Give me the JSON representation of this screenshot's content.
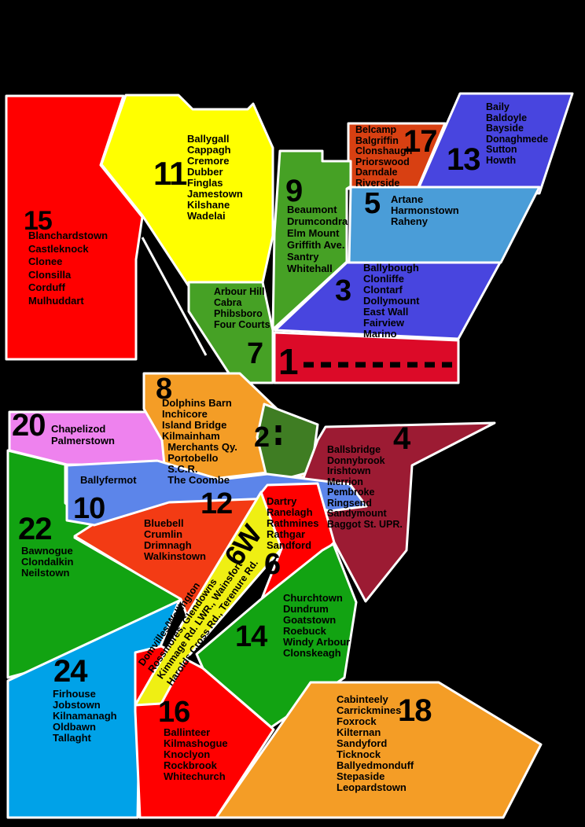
{
  "map": {
    "background_color": "#000000",
    "boundary_color": "#FFFFFF"
  },
  "districts": {
    "d1": {
      "number": "1",
      "color": "#DC0A28"
    },
    "d2": {
      "number": "2",
      "color": "#3F7D23"
    },
    "d3": {
      "number": "3",
      "areas": "Ballybough\nClonliffe\nClontarf\nDollymount\nEast Wall\nFairview\nMarino",
      "color": "#4845DF"
    },
    "d4": {
      "number": "4",
      "areas": "Ballsbridge\nDonnybrook\nIrishtown\nMerrion\nPembroke\nRingsend\nSandymount\nBaggot St. UPR.",
      "color": "#9C1B33"
    },
    "d5": {
      "number": "5",
      "areas": "Artane\nHarmonstown\nRaheny",
      "color": "#4A9DD8"
    },
    "d6": {
      "number": "6",
      "areas": "Dartry\nRanelagh\nRathmines\nRathgar\nSandford",
      "color": "#FF0000"
    },
    "d6w": {
      "number": "6W",
      "areas": "Domvilles/Wellington\nRossmores, Glendowns\nKimmage Rd. LWR., Wainsfort\nHarolds Cross Rd., Terenure Rd.",
      "color": "#EFEF13"
    },
    "d7": {
      "number": "7",
      "areas": "Arbour Hill\nCabra\nPhibsboro\nFour Courts",
      "color": "#46A125"
    },
    "d8": {
      "number": "8",
      "areas": "Dolphins Barn\nInchicore\nIsland Bridge\nKilmainham\n  Merchants Qy.\n  Portobello\n  S.C.R.\n  The Coombe",
      "color": "#F49D26"
    },
    "d9": {
      "number": "9",
      "areas": "Beaumont\nDrumcondra\nElm Mount\nGriffith Ave.\nSantry\nWhitehall",
      "color": "#46A125"
    },
    "d10": {
      "number": "10",
      "areas": "Ballyfermot",
      "color": "#5C85EA"
    },
    "d11": {
      "number": "11",
      "areas": "Ballygall\nCappagh\nCremore\nDubber\nFinglas\nJamestown\nKilshane\nWadelai",
      "color": "#FFFF00"
    },
    "d12": {
      "number": "12",
      "areas": "Bluebell\nCrumlin\nDrimnagh\nWalkinstown",
      "color": "#F33B14"
    },
    "d13": {
      "number": "13",
      "areas": "Baily\nBaldoyle\nBayside\nDonaghmede\nSutton\nHowth",
      "color": "#4845DF"
    },
    "d14": {
      "number": "14",
      "areas": "Churchtown\nDundrum\nGoatstown\nRoebuck\nWindy Arbour\nClonskeagh",
      "color": "#12A312"
    },
    "d15": {
      "number": "15",
      "areas": "Blanchardstown\nCastleknock\nClonee\nClonsilla\nCorduff\nMulhuddart",
      "color": "#FF0000"
    },
    "d16": {
      "number": "16",
      "areas": "Ballinteer\nKilmashogue\nKnoclyon\nRockbrook\nWhitechurch",
      "color": "#FF0000"
    },
    "d17": {
      "number": "17",
      "areas": "Belcamp\nBalgriffin\nClonshaugh\nPriorswood\nDarndale\nRiverside",
      "color": "#D84012"
    },
    "d18": {
      "number": "18",
      "areas": "Cabinteely\nCarrickmines\nFoxrock\nKilternan\nSandyford\nTicknock\nBallyedmonduff\nStepaside\nLeopardstown",
      "color": "#F49D26"
    },
    "d20": {
      "number": "20",
      "areas": "Chapelizod\nPalmerstown",
      "color": "#EE82EE"
    },
    "d22": {
      "number": "22",
      "areas": "Bawnogue\nClondalkin\nNeilstown",
      "color": "#12A312"
    },
    "d24": {
      "number": "24",
      "areas": "Firhouse\nJobstown\nKilnamanagh\nOldbawn\nTallaght",
      "color": "#00A2E8"
    }
  }
}
